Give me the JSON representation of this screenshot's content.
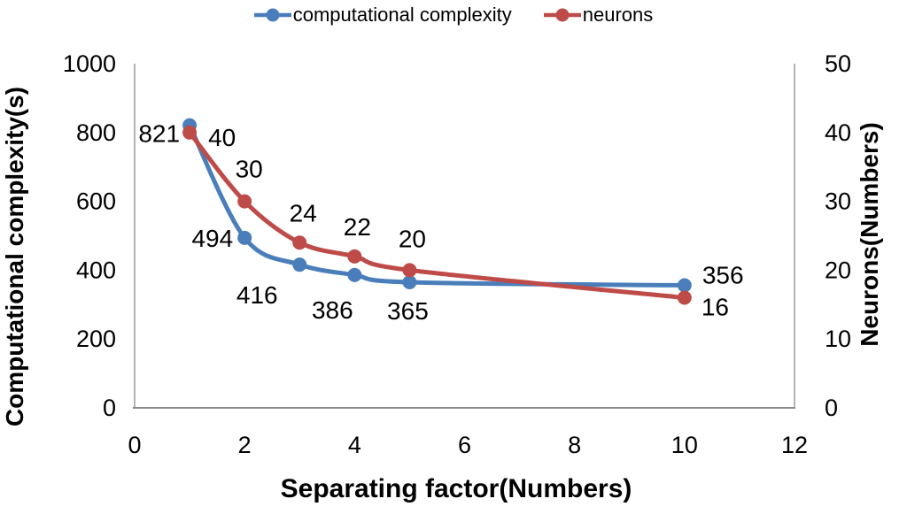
{
  "chart_data": {
    "type": "line",
    "title": "",
    "grid": false,
    "legend_position": "top",
    "x": [
      1,
      2,
      3,
      4,
      5,
      10
    ],
    "x_axis": {
      "label": "Separating factor(Numbers)",
      "ticks": [
        0,
        2,
        4,
        6,
        8,
        10,
        12
      ],
      "range": [
        0,
        12
      ]
    },
    "y_left": {
      "label": "Computational complexity(s)",
      "ticks": [
        0,
        200,
        400,
        600,
        800,
        1000
      ],
      "range": [
        0,
        1000
      ]
    },
    "y_right": {
      "label": "Neurons(Numbers)",
      "ticks": [
        0,
        10,
        20,
        30,
        40,
        50
      ],
      "range": [
        0,
        50
      ]
    },
    "series": [
      {
        "name": "computational complexity",
        "axis": "left",
        "color": "#4A7EBB",
        "values": [
          821,
          494,
          416,
          386,
          365,
          356
        ],
        "data_labels": [
          "821",
          "494",
          "416",
          "386",
          "365",
          "356"
        ],
        "label_offsets": [
          [
            -11,
            19,
            "end"
          ],
          [
            -13,
            10,
            "end"
          ],
          [
            -48,
            44,
            "middle"
          ],
          [
            -25,
            49,
            "middle"
          ],
          [
            -2,
            42,
            "middle"
          ],
          [
            20,
            -2,
            "start"
          ]
        ]
      },
      {
        "name": "neurons",
        "axis": "right",
        "color": "#BE4B48",
        "values": [
          40,
          30,
          24,
          22,
          20,
          16
        ],
        "data_labels": [
          "40",
          "30",
          "24",
          "22",
          "20",
          "16"
        ],
        "label_offsets": [
          [
            21,
            15,
            "start"
          ],
          [
            5,
            -27,
            "middle"
          ],
          [
            4,
            -24,
            "middle"
          ],
          [
            3,
            -24,
            "middle"
          ],
          [
            3,
            -26,
            "middle"
          ],
          [
            19,
            20,
            "start"
          ]
        ]
      }
    ],
    "axis_line_color": "#9c9c9c",
    "bottom_line_color": "#8a8a8a"
  }
}
